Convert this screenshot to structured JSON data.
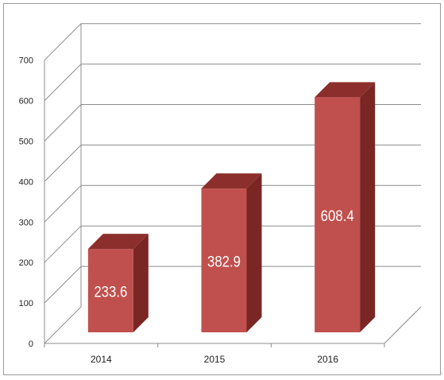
{
  "chart_data": {
    "type": "bar",
    "style": "3d-column",
    "categories": [
      "2014",
      "2015",
      "2016"
    ],
    "values": [
      233.6,
      382.9,
      608.4
    ],
    "data_labels": [
      "233.6",
      "382.9",
      "608.4"
    ],
    "y_ticks": [
      "0",
      "100",
      "200",
      "300",
      "400",
      "500",
      "600",
      "700"
    ],
    "ylim": [
      0,
      700
    ],
    "grid": true,
    "legend": "none",
    "colors": {
      "bar_front": "#c0504d",
      "bar_top": "#8c2f2c",
      "bar_side": "#7a2624",
      "grid": "#8c8c8c",
      "axis_text": "#222222",
      "label_text": "#ffffff"
    }
  }
}
